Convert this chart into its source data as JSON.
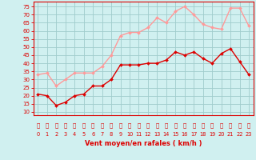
{
  "x": [
    0,
    1,
    2,
    3,
    4,
    5,
    6,
    7,
    8,
    9,
    10,
    11,
    12,
    13,
    14,
    15,
    16,
    17,
    18,
    19,
    20,
    21,
    22,
    23
  ],
  "wind_avg": [
    21,
    20,
    14,
    16,
    20,
    21,
    26,
    26,
    30,
    39,
    39,
    39,
    40,
    40,
    42,
    47,
    45,
    47,
    43,
    40,
    46,
    49,
    41,
    33
  ],
  "wind_gust": [
    33,
    34,
    26,
    30,
    34,
    34,
    34,
    38,
    45,
    57,
    59,
    59,
    62,
    68,
    65,
    72,
    75,
    70,
    64,
    62,
    61,
    74,
    74,
    63
  ],
  "color_avg": "#dd0000",
  "color_gust": "#ff9999",
  "bg_color": "#d0f0f0",
  "grid_color": "#a0cccc",
  "xlabel": "Vent moyen/en rafales ( km/h )",
  "xlabel_color": "#dd0000",
  "ylabel_ticks": [
    10,
    15,
    20,
    25,
    30,
    35,
    40,
    45,
    50,
    55,
    60,
    65,
    70,
    75
  ],
  "ylim": [
    8,
    78
  ],
  "xlim": [
    -0.5,
    23.5
  ],
  "tick_color": "#dd0000",
  "markersize": 2.0,
  "linewidth": 1.0
}
